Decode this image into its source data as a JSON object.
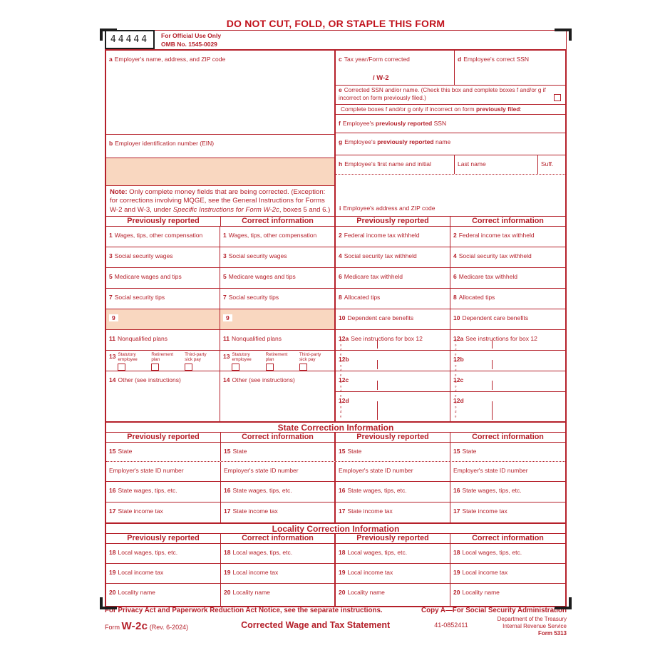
{
  "page": {
    "title": "DO NOT CUT, FOLD, OR STAPLE THIS FORM"
  },
  "control": {
    "number": "44444",
    "official_use": "For Official Use Only",
    "omb": "OMB No. 1545-0029"
  },
  "boxes": {
    "a": {
      "num": "a",
      "label": "Employer's name, address, and ZIP code"
    },
    "b": {
      "num": "b",
      "label": "Employer identification number (EIN)"
    },
    "c": {
      "num": "c",
      "label": "Tax year/Form corrected",
      "value": "/ W-2"
    },
    "d": {
      "num": "d",
      "label": "Employee's correct SSN"
    },
    "e": {
      "num": "e",
      "label": "Corrected SSN and/or name. (Check this box and complete boxes f and/or g if incorrect on form previously filed.)"
    },
    "complete_note": {
      "pre": "Complete boxes f and/or g only if incorrect on form ",
      "bold": "previously filed",
      "post": ":"
    },
    "f": {
      "num": "f",
      "pre": "Employee's ",
      "bold": "previously reported",
      "post": " SSN"
    },
    "g": {
      "num": "g",
      "pre": "Employee's ",
      "bold": "previously reported",
      "post": " name"
    },
    "h": {
      "num": "h",
      "label": "Employee's first name and initial",
      "last": "Last name",
      "suff": "Suff."
    },
    "i": {
      "num": "i",
      "label": "Employee's address and ZIP code"
    }
  },
  "note": {
    "bold": "Note:",
    "t1": " Only complete money fields that are being corrected. (Exception: for corrections involving MQGE, see the General Instructions for Forms W-2 and W-3, under ",
    "italic": "Specific Instructions for Form W-2c",
    "t2": ", boxes 5 and 6.)"
  },
  "headers": {
    "prev": "Previously reported",
    "correct": "Correct information"
  },
  "money": {
    "code_label": "Code",
    "b1": {
      "num": "1",
      "label": "Wages, tips, other compensation"
    },
    "b2": {
      "num": "2",
      "label": "Federal income tax withheld"
    },
    "b3": {
      "num": "3",
      "label": "Social security wages"
    },
    "b4": {
      "num": "4",
      "label": "Social security tax withheld"
    },
    "b5": {
      "num": "5",
      "label": "Medicare wages and tips"
    },
    "b6": {
      "num": "6",
      "label": "Medicare tax withheld"
    },
    "b7": {
      "num": "7",
      "label": "Social security tips"
    },
    "b8": {
      "num": "8",
      "label": "Allocated tips"
    },
    "b9": {
      "num": "9"
    },
    "b10": {
      "num": "10",
      "label": "Dependent care benefits"
    },
    "b11": {
      "num": "11",
      "label": "Nonqualified plans"
    },
    "b12a": {
      "num": "12a",
      "label": "See instructions for box 12"
    },
    "b12b": {
      "num": "12b"
    },
    "b12c": {
      "num": "12c"
    },
    "b12d": {
      "num": "12d"
    },
    "b13": {
      "num": "13",
      "opt1": "Statutory employee",
      "opt2": "Retirement plan",
      "opt3": "Third-party sick pay"
    },
    "b14": {
      "num": "14",
      "label": "Other (see instructions)"
    }
  },
  "state": {
    "title": "State Correction Information",
    "b15": {
      "num": "15",
      "label": "State"
    },
    "state_id": "Employer's state ID number",
    "b16": {
      "num": "16",
      "label": "State wages, tips, etc."
    },
    "b17": {
      "num": "17",
      "label": "State income tax"
    }
  },
  "locality": {
    "title": "Locality Correction Information",
    "b18": {
      "num": "18",
      "label": "Local wages, tips, etc."
    },
    "b19": {
      "num": "19",
      "label": "Local income tax"
    },
    "b20": {
      "num": "20",
      "label": "Locality name"
    }
  },
  "footer": {
    "privacy": "For Privacy Act and Paperwork Reduction Act Notice, see the separate instructions.",
    "copy": "Copy A—For Social Security Administration",
    "form_word": "Form",
    "form_number": "W-2c",
    "revision": "(Rev. 6-2024)",
    "statement": "Corrected Wage and Tax Statement",
    "cat": "41-0852411",
    "dept1": "Department of the Treasury",
    "dept2": "Internal Revenue Service",
    "form5313": "Form 5313"
  },
  "colors": {
    "form_red": "#b5202a",
    "shade": "#f9d7c0",
    "bracket_black": "#1c1c1c",
    "title_red": "#c1121c"
  }
}
